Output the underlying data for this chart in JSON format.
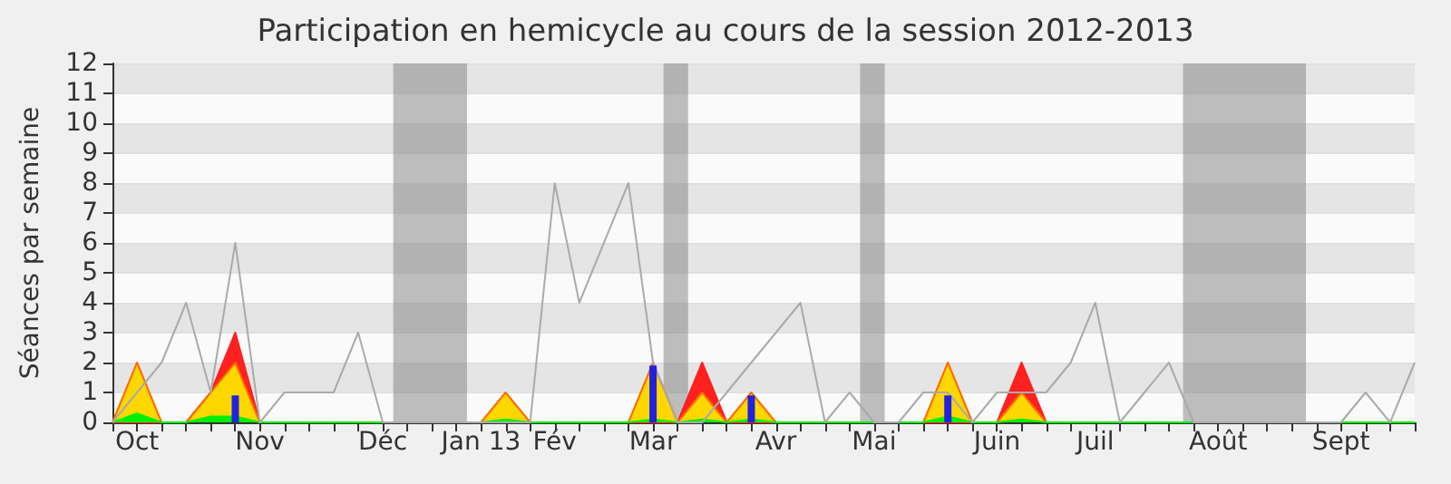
{
  "chart_data": {
    "type": "line",
    "title": "Participation en hemicycle au cours de la session 2012-2013",
    "ylabel": "Séances par semaine",
    "x": [
      "2012-10-01",
      "2012-10-08",
      "2012-10-15",
      "2012-10-22",
      "2012-10-29",
      "2012-11-05",
      "2012-11-12",
      "2012-11-19",
      "2012-11-26",
      "2012-12-03",
      "2012-12-10",
      "2012-12-17",
      "2012-12-24",
      "2012-12-31",
      "2013-01-07",
      "2013-01-14",
      "2013-01-21",
      "2013-01-28",
      "2013-02-04",
      "2013-02-11",
      "2013-02-18",
      "2013-02-25",
      "2013-03-04",
      "2013-03-11",
      "2013-03-18",
      "2013-03-25",
      "2013-04-01",
      "2013-04-08",
      "2013-04-15",
      "2013-04-22",
      "2013-04-29",
      "2013-05-06",
      "2013-05-13",
      "2013-05-20",
      "2013-05-27",
      "2013-06-03",
      "2013-06-10",
      "2013-06-17",
      "2013-06-24",
      "2013-07-01",
      "2013-07-08",
      "2013-07-15",
      "2013-07-22",
      "2013-07-29",
      "2013-08-05",
      "2013-08-12",
      "2013-08-19",
      "2013-08-26",
      "2013-09-02",
      "2013-09-09",
      "2013-09-16",
      "2013-09-23",
      "2013-09-30",
      "2013-10-07"
    ],
    "series": [
      {
        "type": "area",
        "color": "#ff2020",
        "values": [
          0,
          0,
          0,
          0,
          1,
          3,
          0,
          0,
          0,
          0,
          0,
          0,
          0,
          0,
          0,
          0,
          0,
          0,
          0,
          0,
          0,
          0,
          0,
          0,
          2,
          0,
          0,
          0,
          0,
          0,
          0,
          0,
          0,
          0,
          0,
          0,
          0,
          2,
          0,
          0,
          0,
          0,
          0,
          0,
          0,
          0,
          0,
          0,
          0,
          0,
          0,
          0,
          0,
          0
        ]
      },
      {
        "type": "area",
        "color": "#ffd700",
        "values": [
          0,
          2,
          0,
          0,
          1,
          2,
          0,
          0,
          0,
          0,
          0,
          0,
          0,
          0,
          0,
          0,
          1,
          0,
          0,
          0,
          0,
          0,
          2,
          0,
          1,
          0,
          1,
          0,
          0,
          0,
          0,
          0,
          0,
          0,
          2,
          0,
          0,
          1,
          0,
          0,
          0,
          0,
          0,
          0,
          0,
          0,
          0,
          0,
          0,
          0,
          0,
          0,
          0,
          0
        ]
      },
      {
        "type": "area",
        "color": "#00ee00",
        "values": [
          0,
          0.3,
          0,
          0,
          0.2,
          0.2,
          0,
          0,
          0,
          0,
          0,
          0,
          0,
          0,
          0,
          0,
          0.1,
          0,
          0,
          0,
          0,
          0,
          0.1,
          0,
          0.1,
          0,
          0.1,
          0,
          0,
          0,
          0,
          0,
          0,
          0,
          0.2,
          0,
          0,
          0.1,
          0,
          0,
          0,
          0,
          0,
          0,
          0,
          0,
          0,
          0,
          0,
          0,
          0,
          0,
          0,
          0
        ]
      },
      {
        "color": "#aaaaaa",
        "values": [
          0,
          1,
          2,
          4,
          1,
          6,
          0,
          1,
          1,
          1,
          3,
          0,
          0,
          0,
          0,
          0,
          0,
          0,
          8,
          4,
          6,
          8,
          2,
          0,
          0,
          1,
          2,
          3,
          4,
          0,
          1,
          0,
          0,
          1,
          1,
          0,
          1,
          1,
          1,
          2,
          4,
          0,
          1,
          2,
          0,
          0,
          0,
          0,
          0,
          0,
          0,
          1,
          0,
          2
        ]
      },
      {
        "type": "bar",
        "color": "#2222dd",
        "values": [
          null,
          null,
          null,
          null,
          null,
          0.9,
          null,
          null,
          null,
          null,
          null,
          null,
          null,
          null,
          null,
          null,
          null,
          null,
          null,
          null,
          null,
          null,
          1.9,
          null,
          null,
          null,
          0.9,
          null,
          null,
          null,
          null,
          null,
          null,
          null,
          0.9,
          null,
          null,
          null,
          null,
          null,
          null,
          null,
          null,
          null,
          null,
          null,
          null,
          null,
          null,
          null,
          null,
          null,
          null,
          null
        ]
      }
    ],
    "bands": [
      {
        "axis": "x",
        "from": "2012-12-20",
        "to": "2013-01-10",
        "color": "#808080"
      },
      {
        "axis": "x",
        "from": "2013-03-07",
        "to": "2013-03-14",
        "color": "#808080"
      },
      {
        "axis": "x",
        "from": "2013-05-02",
        "to": "2013-05-09",
        "color": "#808080"
      },
      {
        "axis": "x",
        "from": "2013-08-02",
        "to": "2013-09-06",
        "color": "#808080"
      }
    ],
    "xlim": [
      "2012-10-01",
      "2013-10-07"
    ],
    "xticks": [
      {
        "value": "2012-10-01",
        "label": null
      },
      {
        "value": "2012-10-08",
        "label": "Oct"
      },
      {
        "value": "2012-10-15",
        "label": null
      },
      {
        "value": "2012-10-22",
        "label": null
      },
      {
        "value": "2012-10-29",
        "label": null
      },
      {
        "value": "2012-11-05",
        "label": null
      },
      {
        "value": "2012-11-12",
        "label": "Nov"
      },
      {
        "value": "2012-11-19",
        "label": null
      },
      {
        "value": "2012-11-26",
        "label": null
      },
      {
        "value": "2012-12-03",
        "label": null
      },
      {
        "value": "2012-12-10",
        "label": null
      },
      {
        "value": "2012-12-17",
        "label": "Déc"
      },
      {
        "value": "2012-12-24",
        "label": null
      },
      {
        "value": "2012-12-31",
        "label": null
      },
      {
        "value": "2013-01-07",
        "label": null
      },
      {
        "value": "2013-01-14",
        "label": "Jan 13"
      },
      {
        "value": "2013-01-21",
        "label": null
      },
      {
        "value": "2013-01-28",
        "label": null
      },
      {
        "value": "2013-02-04",
        "label": "Fév"
      },
      {
        "value": "2013-02-11",
        "label": null
      },
      {
        "value": "2013-02-18",
        "label": null
      },
      {
        "value": "2013-02-25",
        "label": null
      },
      {
        "value": "2013-03-04",
        "label": "Mar"
      },
      {
        "value": "2013-03-11",
        "label": null
      },
      {
        "value": "2013-03-18",
        "label": null
      },
      {
        "value": "2013-03-25",
        "label": null
      },
      {
        "value": "2013-04-01",
        "label": null
      },
      {
        "value": "2013-04-08",
        "label": "Avr"
      },
      {
        "value": "2013-04-15",
        "label": null
      },
      {
        "value": "2013-04-22",
        "label": null
      },
      {
        "value": "2013-04-29",
        "label": null
      },
      {
        "value": "2013-05-06",
        "label": "Mai"
      },
      {
        "value": "2013-05-13",
        "label": null
      },
      {
        "value": "2013-05-20",
        "label": null
      },
      {
        "value": "2013-05-27",
        "label": null
      },
      {
        "value": "2013-06-03",
        "label": null
      },
      {
        "value": "2013-06-10",
        "label": "Juin"
      },
      {
        "value": "2013-06-17",
        "label": null
      },
      {
        "value": "2013-06-24",
        "label": null
      },
      {
        "value": "2013-07-01",
        "label": null
      },
      {
        "value": "2013-07-08",
        "label": "Juil"
      },
      {
        "value": "2013-07-15",
        "label": null
      },
      {
        "value": "2013-07-22",
        "label": null
      },
      {
        "value": "2013-07-29",
        "label": null
      },
      {
        "value": "2013-08-05",
        "label": null
      },
      {
        "value": "2013-08-12",
        "label": "Août"
      },
      {
        "value": "2013-08-19",
        "label": null
      },
      {
        "value": "2013-08-26",
        "label": null
      },
      {
        "value": "2013-09-02",
        "label": null
      },
      {
        "value": "2013-09-09",
        "label": null
      },
      {
        "value": "2013-09-16",
        "label": "Sept"
      },
      {
        "value": "2013-09-23",
        "label": null
      },
      {
        "value": "2013-09-30",
        "label": null
      },
      {
        "value": "2013-10-07",
        "label": null
      }
    ],
    "ylim": [
      0,
      12
    ],
    "yticks": [
      0,
      1,
      2,
      3,
      4,
      5,
      6,
      7,
      8,
      9,
      10,
      11,
      12
    ],
    "grid": "y",
    "marker": "none"
  }
}
